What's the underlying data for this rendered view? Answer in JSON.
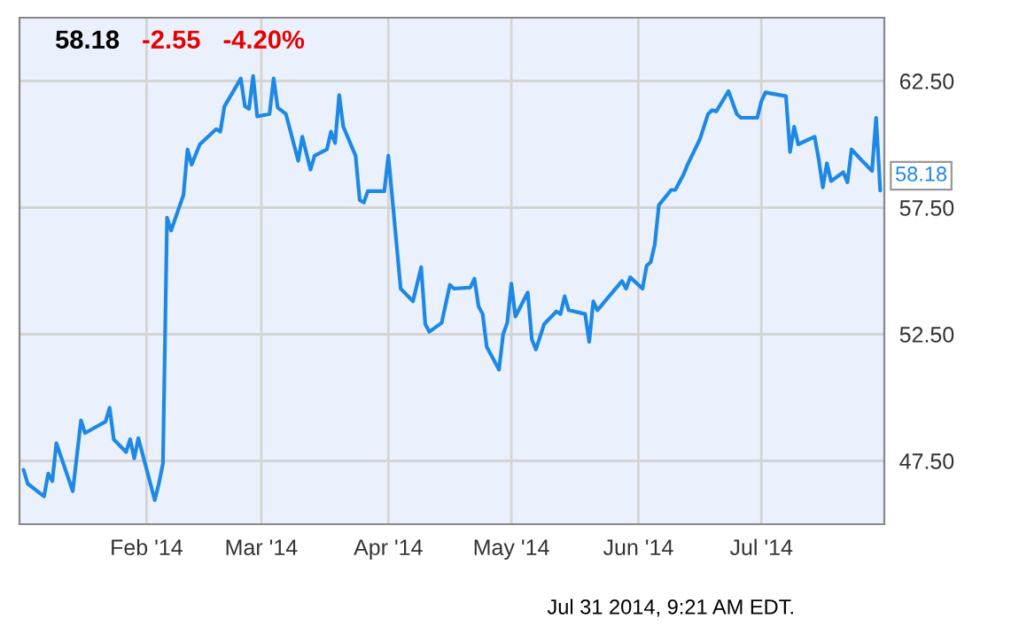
{
  "chart_data": {
    "type": "line",
    "title": "58.18",
    "annotations": [
      "-2.55",
      "-4.20%",
      "Jul 31 2014, 9:21 AM EDT.",
      {
        "text": "58.18",
        "x": "2014-07-30",
        "y": 58.18
      }
    ],
    "x": [
      "2014-01-02",
      "2014-01-03",
      "2014-01-07",
      "2014-01-08",
      "2014-01-09",
      "2014-01-10",
      "2014-01-14",
      "2014-01-16",
      "2014-01-17",
      "2014-01-22",
      "2014-01-23",
      "2014-01-24",
      "2014-01-27",
      "2014-01-28",
      "2014-01-29",
      "2014-01-30",
      "2014-02-03",
      "2014-02-04",
      "2014-02-05",
      "2014-02-06",
      "2014-02-07",
      "2014-02-10",
      "2014-02-11",
      "2014-02-12",
      "2014-02-14",
      "2014-02-18",
      "2014-02-19",
      "2014-02-20",
      "2014-02-24",
      "2014-02-25",
      "2014-02-26",
      "2014-02-27",
      "2014-02-28",
      "2014-03-03",
      "2014-03-04",
      "2014-03-05",
      "2014-03-07",
      "2014-03-10",
      "2014-03-11",
      "2014-03-13",
      "2014-03-14",
      "2014-03-17",
      "2014-03-18",
      "2014-03-19",
      "2014-03-20",
      "2014-03-21",
      "2014-03-24",
      "2014-03-25",
      "2014-03-26",
      "2014-03-27",
      "2014-03-31",
      "2014-04-01",
      "2014-04-04",
      "2014-04-07",
      "2014-04-09",
      "2014-04-10",
      "2014-04-11",
      "2014-04-14",
      "2014-04-16",
      "2014-04-17",
      "2014-04-21",
      "2014-04-22",
      "2014-04-23",
      "2014-04-24",
      "2014-04-25",
      "2014-04-28",
      "2014-04-29",
      "2014-04-30",
      "2014-05-01",
      "2014-05-02",
      "2014-05-05",
      "2014-05-06",
      "2014-05-07",
      "2014-05-09",
      "2014-05-12",
      "2014-05-13",
      "2014-05-14",
      "2014-05-15",
      "2014-05-19",
      "2014-05-20",
      "2014-05-21",
      "2014-05-22",
      "2014-05-28",
      "2014-05-29",
      "2014-05-30",
      "2014-06-02",
      "2014-06-03",
      "2014-06-04",
      "2014-06-05",
      "2014-06-06",
      "2014-06-09",
      "2014-06-10",
      "2014-06-12",
      "2014-06-13",
      "2014-06-16",
      "2014-06-18",
      "2014-06-19",
      "2014-06-20",
      "2014-06-23",
      "2014-06-25",
      "2014-06-26",
      "2014-06-30",
      "2014-07-01",
      "2014-07-02",
      "2014-07-07",
      "2014-07-08",
      "2014-07-09",
      "2014-07-10",
      "2014-07-14",
      "2014-07-15",
      "2014-07-16",
      "2014-07-17",
      "2014-07-18",
      "2014-07-21",
      "2014-07-22",
      "2014-07-23",
      "2014-07-25",
      "2014-07-28",
      "2014-07-29",
      "2014-07-30"
    ],
    "series": [
      {
        "color": "#1e88e5",
        "values": [
          47.15,
          46.6,
          46.1,
          47.0,
          46.7,
          48.2,
          46.3,
          49.1,
          48.6,
          49.05,
          49.6,
          48.35,
          47.85,
          48.35,
          47.6,
          48.4,
          45.95,
          46.6,
          47.4,
          57.1,
          56.6,
          58.0,
          59.8,
          59.2,
          60.0,
          60.6,
          60.5,
          61.5,
          62.6,
          61.5,
          61.4,
          62.7,
          61.1,
          61.2,
          62.6,
          61.45,
          61.2,
          59.35,
          60.3,
          59.0,
          59.55,
          59.8,
          60.5,
          60.05,
          61.95,
          60.7,
          59.55,
          57.8,
          57.7,
          58.15,
          58.15,
          59.55,
          54.3,
          53.8,
          55.15,
          52.9,
          52.6,
          52.95,
          54.45,
          54.3,
          54.35,
          54.7,
          53.6,
          53.3,
          52.0,
          51.1,
          52.5,
          52.95,
          54.5,
          53.2,
          54.15,
          52.3,
          51.9,
          52.9,
          53.4,
          53.3,
          54.0,
          53.45,
          53.3,
          52.2,
          53.8,
          53.45,
          54.6,
          54.3,
          54.75,
          54.3,
          55.2,
          55.35,
          56.05,
          57.6,
          58.2,
          58.2,
          58.8,
          59.2,
          60.2,
          61.2,
          61.35,
          61.3,
          62.1,
          61.2,
          61.05,
          61.05,
          61.7,
          62.05,
          61.9,
          59.7,
          60.7,
          60.0,
          60.3,
          59.4,
          58.3,
          59.25,
          58.55,
          58.9,
          58.5,
          59.8,
          59.45,
          58.95,
          61.05,
          58.18
        ]
      }
    ],
    "xlim": [
      "2014-01-01",
      "2014-07-31"
    ],
    "xticks": [
      {
        "value": "2014-02-01",
        "label": "Feb '14"
      },
      {
        "value": "2014-03-01",
        "label": "Mar '14"
      },
      {
        "value": "2014-04-01",
        "label": "Apr '14"
      },
      {
        "value": "2014-05-01",
        "label": "May '14"
      },
      {
        "value": "2014-06-01",
        "label": "Jun '14"
      },
      {
        "value": "2014-07-01",
        "label": "Jul '14"
      }
    ],
    "ylim": [
      45,
      65
    ],
    "yticks": [
      {
        "value": 47.5,
        "label": "47.50"
      },
      {
        "value": 52.5,
        "label": "52.50"
      },
      {
        "value": 57.5,
        "label": "57.50"
      },
      {
        "value": 62.5,
        "label": "62.50"
      }
    ],
    "grid": true,
    "line_style": "solid",
    "marker": "none"
  }
}
